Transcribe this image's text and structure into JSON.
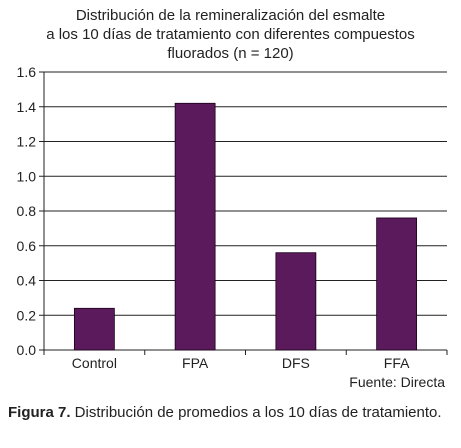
{
  "chart_data": {
    "type": "bar",
    "title_lines": [
      "Distribución de la remineralización del esmalte",
      "a los 10 días de tratamiento con diferentes compuestos",
      "fluorados (n = 120)"
    ],
    "categories": [
      "Control",
      "FPA",
      "DFS",
      "FFA"
    ],
    "values": [
      0.24,
      1.42,
      0.56,
      0.76
    ],
    "ylim": [
      0,
      1.6
    ],
    "yticks": [
      "0.0",
      "0.2",
      "0.4",
      "0.6",
      "0.8",
      "1.0",
      "1.2",
      "1.4",
      "1.6"
    ],
    "grid": true,
    "bar_color": "#5b1a5b",
    "legend": "none"
  },
  "source": "Fuente: Directa",
  "caption": {
    "label": "Figura 7.",
    "text": " Distribución de promedios a los 10 días de tratamiento."
  }
}
